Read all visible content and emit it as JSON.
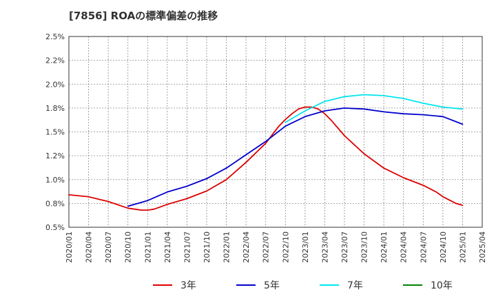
{
  "title": "[7856]  ROAの標準偏差の推移",
  "chart_data": {
    "type": "line",
    "title": "[7856]  ROAの標準偏差の推移",
    "xlabel": "",
    "ylabel": "",
    "x_ticks": [
      "2020/01",
      "2020/04",
      "2020/07",
      "2020/10",
      "2021/01",
      "2021/04",
      "2021/07",
      "2021/10",
      "2022/01",
      "2022/04",
      "2022/07",
      "2022/10",
      "2023/01",
      "2023/04",
      "2023/07",
      "2023/10",
      "2024/01",
      "2024/04",
      "2024/07",
      "2024/10",
      "2025/01",
      "2025/04"
    ],
    "y_ticks": [
      "0.5%",
      "0.8%",
      "1.0%",
      "1.2%",
      "1.5%",
      "1.8%",
      "2.0%",
      "2.2%",
      "2.5%"
    ],
    "ylim": [
      0.5,
      2.5
    ],
    "grid": true,
    "legend_position": "bottom",
    "series": [
      {
        "name": "3年",
        "color": "#dd0000",
        "points": [
          [
            "2020/01",
            0.84
          ],
          [
            "2020/04",
            0.82
          ],
          [
            "2020/07",
            0.77
          ],
          [
            "2020/10",
            0.7
          ],
          [
            "2020/11",
            0.69
          ],
          [
            "2020/12",
            0.68
          ],
          [
            "2021/01",
            0.68
          ],
          [
            "2021/02",
            0.69
          ],
          [
            "2021/04",
            0.74
          ],
          [
            "2021/07",
            0.8
          ],
          [
            "2021/10",
            0.88
          ],
          [
            "2022/01",
            1.0
          ],
          [
            "2022/04",
            1.18
          ],
          [
            "2022/07",
            1.38
          ],
          [
            "2022/08",
            1.47
          ],
          [
            "2022/09",
            1.56
          ],
          [
            "2022/10",
            1.63
          ],
          [
            "2022/11",
            1.69
          ],
          [
            "2022/12",
            1.74
          ],
          [
            "2023/01",
            1.76
          ],
          [
            "2023/02",
            1.76
          ],
          [
            "2023/03",
            1.74
          ],
          [
            "2023/04",
            1.69
          ],
          [
            "2023/05",
            1.62
          ],
          [
            "2023/07",
            1.46
          ],
          [
            "2023/10",
            1.27
          ],
          [
            "2024/01",
            1.12
          ],
          [
            "2024/04",
            1.02
          ],
          [
            "2024/07",
            0.94
          ],
          [
            "2024/09",
            0.87
          ],
          [
            "2024/10",
            0.82
          ],
          [
            "2024/12",
            0.75
          ],
          [
            "2025/01",
            0.73
          ]
        ]
      },
      {
        "name": "5年",
        "color": "#0000cc",
        "points": [
          [
            "2020/10",
            0.72
          ],
          [
            "2021/01",
            0.78
          ],
          [
            "2021/04",
            0.87
          ],
          [
            "2021/07",
            0.93
          ],
          [
            "2021/10",
            1.01
          ],
          [
            "2022/01",
            1.12
          ],
          [
            "2022/04",
            1.26
          ],
          [
            "2022/07",
            1.4
          ],
          [
            "2022/10",
            1.56
          ],
          [
            "2023/01",
            1.66
          ],
          [
            "2023/04",
            1.72
          ],
          [
            "2023/07",
            1.75
          ],
          [
            "2023/10",
            1.74
          ],
          [
            "2024/01",
            1.71
          ],
          [
            "2024/04",
            1.69
          ],
          [
            "2024/07",
            1.68
          ],
          [
            "2024/10",
            1.66
          ],
          [
            "2025/01",
            1.58
          ]
        ]
      },
      {
        "name": "7年",
        "color": "#00e5ee",
        "points": [
          [
            "2022/10",
            1.6
          ],
          [
            "2023/01",
            1.72
          ],
          [
            "2023/04",
            1.82
          ],
          [
            "2023/07",
            1.87
          ],
          [
            "2023/10",
            1.89
          ],
          [
            "2024/01",
            1.88
          ],
          [
            "2024/04",
            1.85
          ],
          [
            "2024/07",
            1.8
          ],
          [
            "2024/10",
            1.76
          ],
          [
            "2025/01",
            1.74
          ]
        ]
      },
      {
        "name": "10年",
        "color": "#008000",
        "points": []
      }
    ]
  }
}
